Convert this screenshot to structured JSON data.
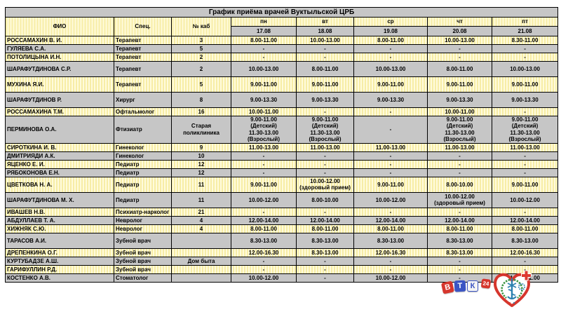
{
  "title": "График приёма врачей Вуктыльской ЦРБ",
  "schedule": {
    "header": {
      "fio": "ФИО",
      "spec": "Спец.",
      "cab": "№ каб"
    },
    "days": [
      {
        "label": "пн",
        "date": "17.08"
      },
      {
        "label": "вт",
        "date": "18.08"
      },
      {
        "label": "ср",
        "date": "19.08"
      },
      {
        "label": "чт",
        "date": "20.08"
      },
      {
        "label": "пт",
        "date": "21.08"
      }
    ],
    "rows": [
      {
        "fio": "РОССАМАХИН В. И.",
        "spec": "Терапевт",
        "cab": "3",
        "times": [
          "8.00-11.00",
          "10.00-13.00",
          "8.00-11.00",
          "10.00-13.00",
          "8.30-11.00"
        ]
      },
      {
        "fio": "ГУЛЯЕВА С.А.",
        "spec": "Терапевт",
        "cab": "5",
        "times": [
          "-",
          "-",
          "-",
          "-",
          "-"
        ]
      },
      {
        "fio": "ПОТОЛИЦЫНА И.Н.",
        "spec": "Терапевт",
        "cab": "2",
        "times": [
          "-",
          "-",
          "-",
          "-",
          "-"
        ]
      },
      {
        "fio": "ШАРАФУТДИНОВА С.Р.",
        "spec": "Терапевт",
        "cab": "2",
        "times": [
          "10.00-13.00",
          "8.00-11.00",
          "10.00-13.00",
          "8.00-11.00",
          "10.00-13.00"
        ]
      },
      {
        "fio": "МУХИНА Я.И.",
        "spec": "Терапевт",
        "cab": "5",
        "times": [
          "9.00-11.00",
          "9.00-11.00",
          "9.00-11.00",
          "9.00-11.00",
          "9.00-11.00"
        ]
      },
      {
        "fio": "ШАРАФУТДИНОВ Р.",
        "spec": "Хирург",
        "cab": "8",
        "times": [
          "9.00-13.30",
          "9.00-13.30",
          "9.00-13.30",
          "9.00-13.30",
          "9.00-13.30"
        ]
      },
      {
        "fio": "РОССАМАХИНА Т.М.",
        "spec": "Офтальмолог",
        "cab": "16",
        "times": [
          "10.00-11.00",
          "-",
          "-",
          "10.00-11.00",
          "-"
        ]
      },
      {
        "fio": "ПЕРМИНОВА О.А.",
        "spec": "Фтизиатр",
        "cab": "Старая\nполиклиника",
        "times": [
          "9.00-11.00\n(Детский)\n11.30-13.00\n(Взрослый)",
          "9.00-11.00\n(Детский)\n11.30-13.00\n(Взрослый)",
          "-",
          "9.00-11.00\n(Детский)\n11.30-13.00\n(Взрослый)",
          "9.00-11.00\n(Детский)\n11.30-13.00\n(Взрослый)"
        ]
      },
      {
        "fio": "СИРОТКИНА И. В.",
        "spec": "Гинеколог",
        "cab": "9",
        "times": [
          "11.00-13.00",
          "11.00-13.00",
          "11.00-13.00",
          "11.00-13.00",
          "11.00-13.00"
        ]
      },
      {
        "fio": "ДМИТРИЯДИ А.К.",
        "spec": "Гинеколог",
        "cab": "10",
        "times": [
          "-",
          "-",
          "-",
          "-",
          "-"
        ]
      },
      {
        "fio": "ЯЦЕНКО Е. И.",
        "spec": "Педиатр",
        "cab": "12",
        "times": [
          "-",
          "-",
          "-",
          "-",
          "-"
        ]
      },
      {
        "fio": "РЯБОКОНОВА Е.Н.",
        "spec": "Педиатр",
        "cab": "12",
        "times": [
          "-",
          "-",
          "-",
          "-",
          "-"
        ]
      },
      {
        "fio": "ЦВЕТКОВА Н. А.",
        "spec": "Педиатр",
        "cab": "11",
        "times": [
          "9.00-11.00",
          "10.00-12.00\n(здоровый прием)",
          "9.00-11.00",
          "8.00-10.00",
          "9.00-11.00"
        ]
      },
      {
        "fio": "ШАРАФУТДИНОВА М. Х.",
        "spec": "Педиатр",
        "cab": "11",
        "times": [
          "10.00-12.00",
          "8.00-10.00",
          "10.00-12.00",
          "10.00-12.00\n(здоровый прием)",
          "10.00-12.00"
        ]
      },
      {
        "fio": "ИВАШЕВ Н.В.",
        "spec": "Психиатр-нарколог",
        "cab": "21",
        "times": [
          "-",
          "-",
          "-",
          "-",
          "-"
        ]
      },
      {
        "fio": "АБДУЛЛАЕВ Т. А.",
        "spec": "Невролог",
        "cab": "4",
        "times": [
          "12.00-14.00",
          "12.00-14.00",
          "12.00-14.00",
          "12.00-14.00",
          "12.00-14.00"
        ]
      },
      {
        "fio": "ХИЖНЯК С.Ю.",
        "spec": "Невролог",
        "cab": "4",
        "times": [
          "8.00-11.00",
          "8.00-11.00",
          "8.00-11.00",
          "8.00-11.00",
          "8.00-11.00"
        ]
      },
      {
        "fio": "ТАРАСОВ А.И.",
        "spec": "Зубной врач",
        "cab": "",
        "times": [
          "8.30-13.00",
          "8.30-13.00",
          "8.30-13.00",
          "8.30-13.00",
          "8.30-13.00"
        ]
      },
      {
        "fio": "ДРЕПЕНКИНА О.Г.",
        "spec": "Зубной врач",
        "cab": "",
        "times": [
          "12.00-16.30",
          "8.30-13.00",
          "12.00-16.30",
          "8.30-13.00",
          "12.00-16.30"
        ]
      },
      {
        "fio": "КУРТУБАДЗЕ А.Ш.",
        "spec": "Зубной врач",
        "cab": "Дом быта",
        "times": [
          "-",
          "-",
          "-",
          "-",
          "-"
        ]
      },
      {
        "fio": "ГАРИФУЛЛИН Р.Д.",
        "spec": "Зубной врач",
        "cab": "",
        "times": [
          "-",
          "-",
          "-",
          "-",
          "-"
        ]
      },
      {
        "fio": "КОСТЕНКО А.В.",
        "spec": "Стоматолог",
        "cab": "",
        "times": [
          "10.00-12.00",
          "-",
          "10.00-12.00",
          "-",
          "10.00-12.00"
        ]
      }
    ]
  },
  "logos": {
    "vtk_letters": [
      "В",
      "Т",
      "К"
    ],
    "vtk_badge": "24"
  },
  "colors": {
    "row_yellow": "#f7eda6",
    "row_yellow_light": "#fffbdc",
    "row_gray": "#c6c6c6",
    "brand_red": "#d6362d",
    "brand_blue": "#3b55c4",
    "wreath_green": "#3a9440",
    "emblem_teal": "#2b80af"
  }
}
